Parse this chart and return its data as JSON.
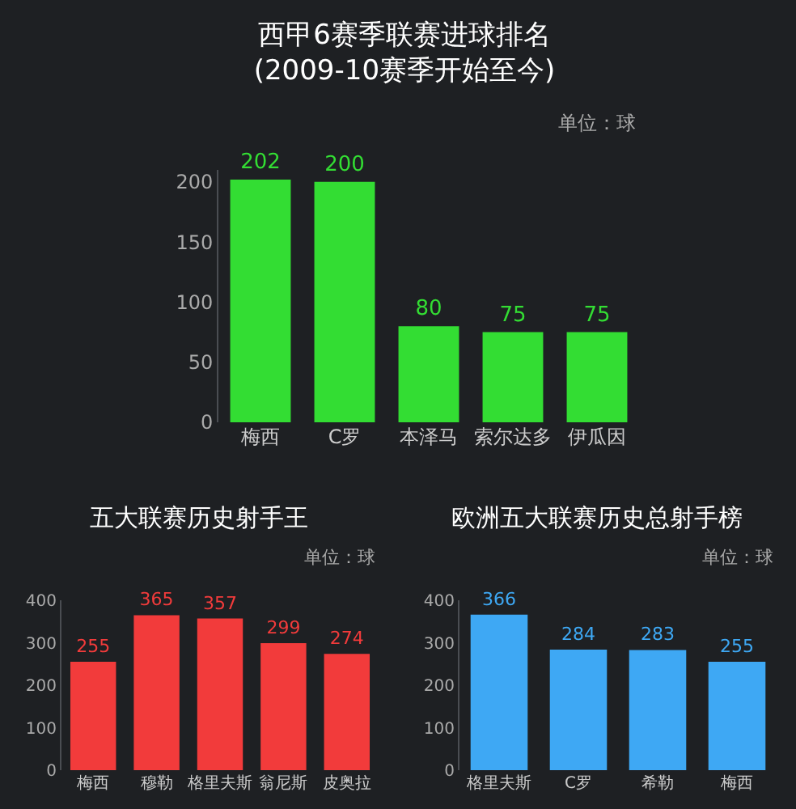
{
  "chart_data": [
    {
      "type": "bar",
      "title": "西甲6赛季联赛进球排名\n(2009-10赛季开始至今)",
      "annotations": [
        "单位：球"
      ],
      "categories": [
        "梅西",
        "C罗",
        "本泽马",
        "索尔达多",
        "伊瓜因"
      ],
      "values": [
        202,
        200,
        80,
        75,
        75
      ],
      "color": "#33dd33",
      "ylim": [
        0,
        210
      ],
      "yticks": [
        0,
        50,
        100,
        150,
        200
      ],
      "grid": false,
      "data_labels": true
    },
    {
      "type": "bar",
      "title": "五大联赛历史射手王",
      "annotations": [
        "单位：球"
      ],
      "categories": [
        "梅西",
        "穆勒",
        "格里夫斯",
        "翁尼斯",
        "皮奥拉"
      ],
      "values": [
        255,
        365,
        357,
        299,
        274
      ],
      "color": "#f23b3b",
      "ylim": [
        0,
        400
      ],
      "yticks": [
        0,
        100,
        200,
        300,
        400
      ],
      "grid": false,
      "data_labels": true
    },
    {
      "type": "bar",
      "title": "欧洲五大联赛历史总射手榜",
      "annotations": [
        "单位：球"
      ],
      "categories": [
        "格里夫斯",
        "C罗",
        "希勒",
        "梅西"
      ],
      "values": [
        366,
        284,
        283,
        255
      ],
      "color": "#3ea8f4",
      "ylim": [
        0,
        400
      ],
      "yticks": [
        0,
        100,
        200,
        300,
        400
      ],
      "grid": false,
      "data_labels": true
    }
  ]
}
